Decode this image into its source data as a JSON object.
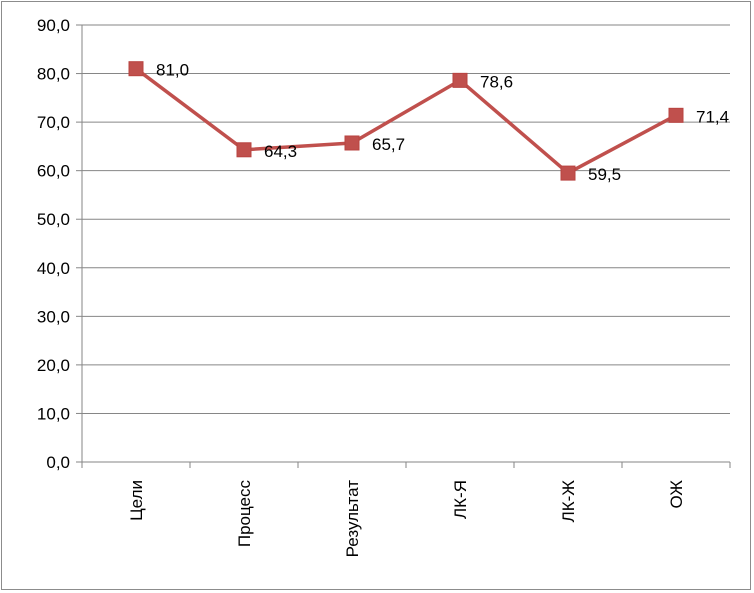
{
  "chart_data": {
    "type": "line",
    "categories": [
      "Цели",
      "Процесс",
      "Результат",
      "ЛК-Я",
      "ЛК-Ж",
      "ОЖ"
    ],
    "series": [
      {
        "values": [
          81.0,
          64.3,
          65.7,
          78.6,
          59.5,
          71.4
        ],
        "color": "#c0504d",
        "marker": "square"
      }
    ],
    "data_labels": [
      "81,0",
      "64,3",
      "65,7",
      "78,6",
      "59,5",
      "71,4"
    ],
    "y_tick_labels": [
      "0,0",
      "10,0",
      "20,0",
      "30,0",
      "40,0",
      "50,0",
      "60,0",
      "70,0",
      "80,0",
      "90,0"
    ],
    "ylim": [
      0,
      90
    ],
    "y_step": 10,
    "grid": true,
    "gridline_color": "#868686",
    "axis_color": "#868686",
    "category_label_orientation": "vertical",
    "title": "",
    "xlabel": "",
    "ylabel": ""
  }
}
